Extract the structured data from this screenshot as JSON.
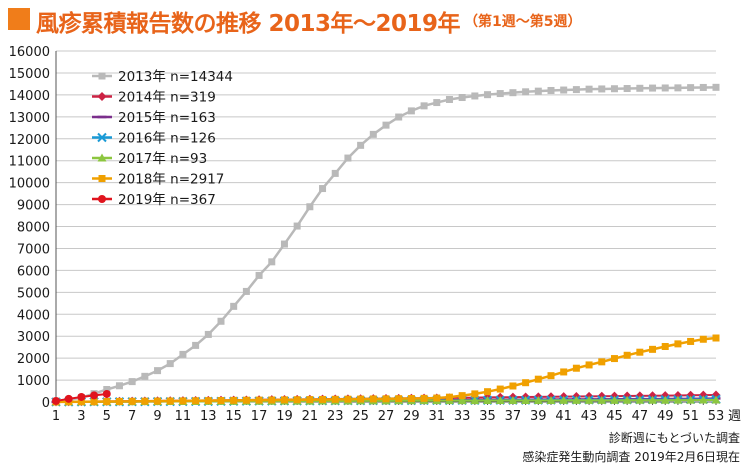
{
  "title": {
    "main": "風疹累積報告数の推移 2013年～2019年",
    "sub": "（第1週～第5週）"
  },
  "notes": {
    "line1": "診断週にもとづいた調査",
    "line2": "感染症発生動向調査 2019年2月6日現在"
  },
  "chart_data": {
    "type": "line",
    "title": "風疹累積報告数の推移 2013年～2019年（第1週～第5週）",
    "xlabel": "週",
    "ylabel": "",
    "xlim": [
      1,
      53
    ],
    "ylim": [
      0,
      16000
    ],
    "x_tick_labels": [
      "1",
      "3",
      "5",
      "7",
      "9",
      "11",
      "13",
      "15",
      "17",
      "19",
      "21",
      "23",
      "25",
      "27",
      "29",
      "31",
      "33",
      "35",
      "37",
      "39",
      "41",
      "43",
      "45",
      "47",
      "49",
      "51",
      "53"
    ],
    "y_tick_labels": [
      "0",
      "1000",
      "2000",
      "3000",
      "4000",
      "5000",
      "6000",
      "7000",
      "8000",
      "9000",
      "10000",
      "11000",
      "12000",
      "13000",
      "14000",
      "15000",
      "16000"
    ],
    "grid": true,
    "legend_position": "top-left",
    "series": [
      {
        "name": "2013年 n=14344",
        "color": "#b9b9b9",
        "marker": "square",
        "values": [
          44,
          100,
          200,
          380,
          570,
          740,
          930,
          1170,
          1430,
          1750,
          2170,
          2580,
          3080,
          3680,
          4360,
          5040,
          5770,
          6390,
          7200,
          8020,
          8900,
          9730,
          10420,
          11120,
          11700,
          12200,
          12620,
          12990,
          13270,
          13500,
          13650,
          13790,
          13880,
          13950,
          14010,
          14060,
          14100,
          14140,
          14170,
          14200,
          14220,
          14240,
          14260,
          14270,
          14280,
          14290,
          14300,
          14310,
          14315,
          14320,
          14330,
          14338,
          14344
        ]
      },
      {
        "name": "2014年 n=319",
        "color": "#cc2244",
        "marker": "diamond",
        "values": [
          5,
          10,
          16,
          22,
          28,
          34,
          40,
          46,
          52,
          58,
          64,
          70,
          76,
          82,
          88,
          94,
          100,
          106,
          112,
          118,
          124,
          130,
          136,
          142,
          148,
          154,
          160,
          166,
          172,
          178,
          184,
          190,
          196,
          202,
          208,
          214,
          220,
          226,
          232,
          238,
          244,
          250,
          256,
          262,
          268,
          274,
          280,
          286,
          292,
          298,
          305,
          312,
          319
        ]
      },
      {
        "name": "2015年 n=163",
        "color": "#7b2f8c",
        "marker": "dash",
        "values": [
          3,
          6,
          9,
          12,
          15,
          18,
          21,
          24,
          27,
          30,
          33,
          36,
          39,
          42,
          45,
          48,
          51,
          54,
          57,
          60,
          63,
          66,
          69,
          72,
          75,
          78,
          81,
          84,
          87,
          90,
          93,
          96,
          99,
          102,
          105,
          108,
          111,
          114,
          117,
          120,
          123,
          126,
          129,
          132,
          135,
          138,
          141,
          144,
          147,
          150,
          154,
          158,
          163
        ]
      },
      {
        "name": "2016年 n=126",
        "color": "#1a9ad6",
        "marker": "cross",
        "values": [
          2,
          4,
          6,
          8,
          10,
          12,
          14,
          16,
          18,
          20,
          23,
          26,
          29,
          32,
          35,
          38,
          41,
          44,
          47,
          50,
          52,
          54,
          56,
          58,
          60,
          62,
          64,
          66,
          68,
          70,
          72,
          74,
          76,
          78,
          80,
          82,
          84,
          86,
          88,
          90,
          92,
          94,
          96,
          98,
          100,
          102,
          104,
          106,
          108,
          110,
          115,
          120,
          126
        ]
      },
      {
        "name": "2017年 n=93",
        "color": "#8cc63f",
        "marker": "triangle",
        "values": [
          2,
          4,
          6,
          8,
          10,
          12,
          14,
          16,
          18,
          20,
          22,
          24,
          26,
          28,
          30,
          32,
          34,
          36,
          38,
          40,
          42,
          44,
          46,
          48,
          50,
          52,
          54,
          56,
          58,
          60,
          62,
          63,
          64,
          65,
          66,
          67,
          68,
          69,
          70,
          71,
          72,
          73,
          74,
          75,
          76,
          77,
          78,
          80,
          82,
          84,
          87,
          90,
          93
        ]
      },
      {
        "name": "2018年 n=2917",
        "color": "#f0a000",
        "marker": "square",
        "values": [
          4,
          8,
          12,
          16,
          20,
          24,
          30,
          36,
          40,
          45,
          50,
          56,
          62,
          68,
          74,
          80,
          86,
          92,
          98,
          104,
          110,
          116,
          122,
          128,
          134,
          140,
          146,
          152,
          158,
          166,
          180,
          220,
          290,
          370,
          470,
          590,
          730,
          880,
          1040,
          1200,
          1370,
          1540,
          1690,
          1830,
          1980,
          2130,
          2270,
          2400,
          2530,
          2650,
          2760,
          2860,
          2917
        ]
      },
      {
        "name": "2019年 n=367",
        "color": "#e0141e",
        "marker": "circle",
        "values": [
          47,
          145,
          230,
          300,
          367
        ]
      }
    ]
  }
}
